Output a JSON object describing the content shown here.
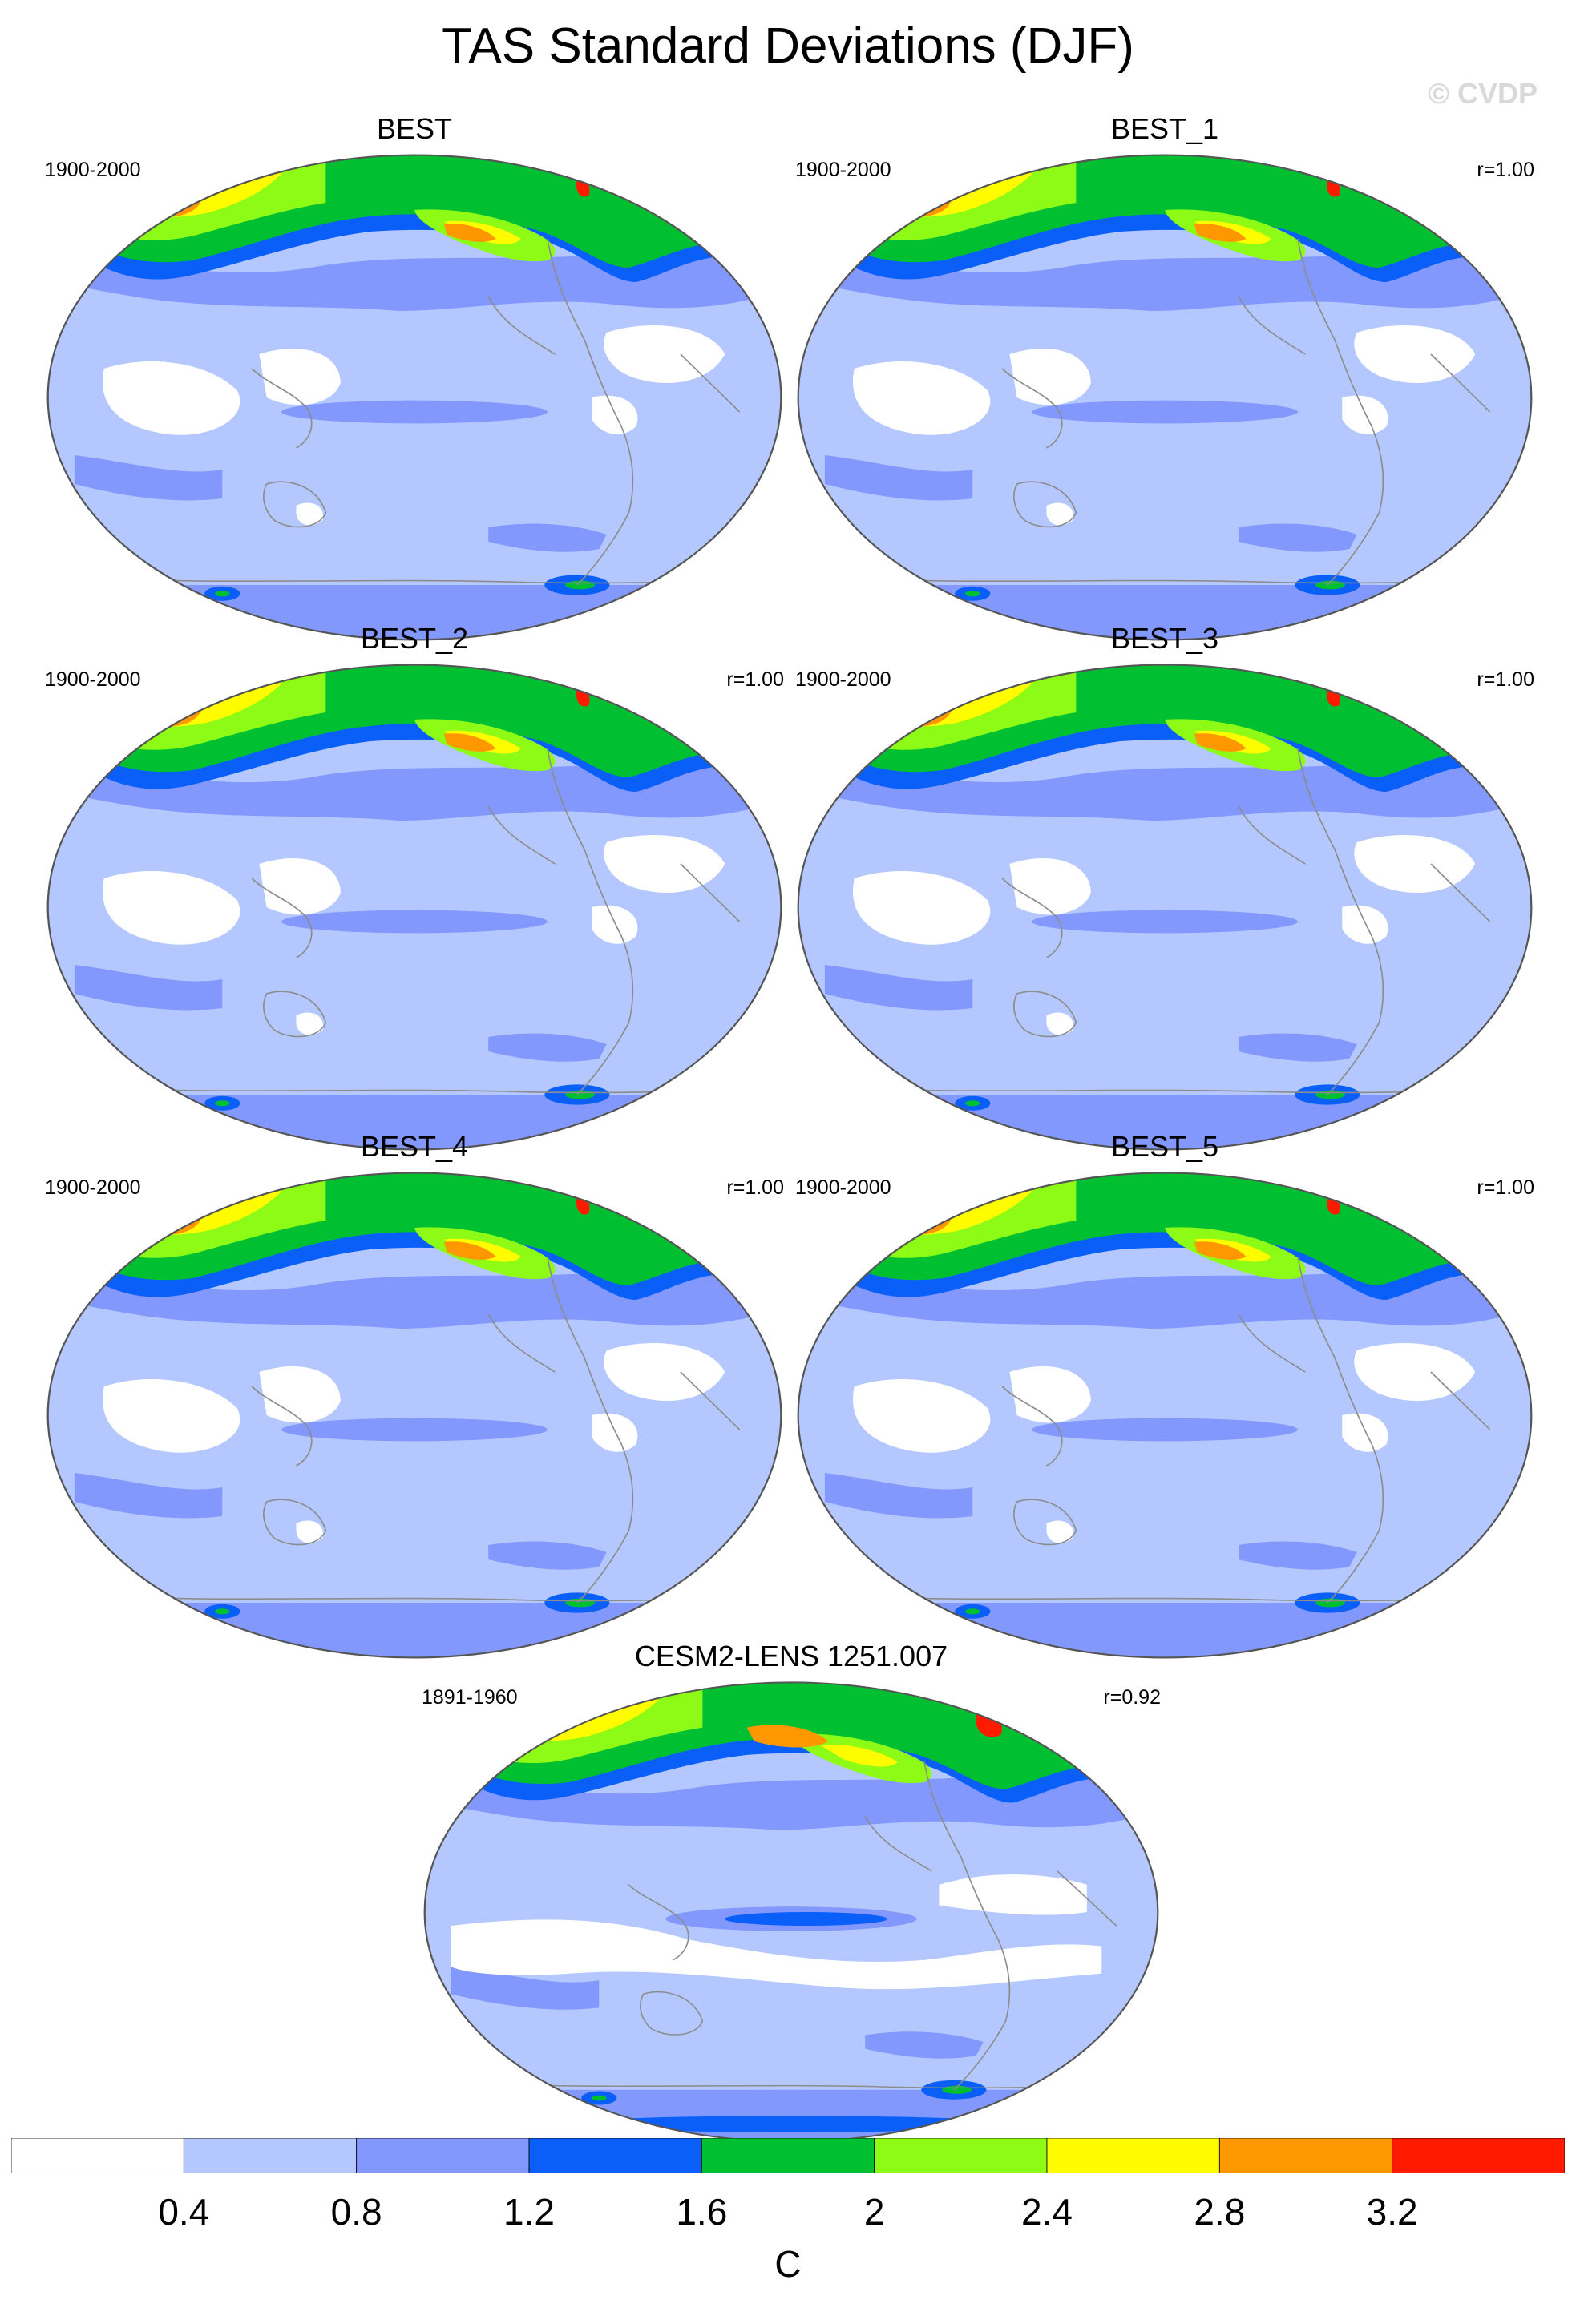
{
  "title": "TAS Standard Deviations (DJF)",
  "watermark": "© CVDP",
  "colors": {
    "levels": [
      "#ffffff",
      "#b4c8ff",
      "#8398fc",
      "#0a5ff9",
      "#00c032",
      "#8dfb15",
      "#fffc00",
      "#ff9800",
      "#ff1a00"
    ],
    "coast": "#8c8c8c"
  },
  "panels": [
    {
      "title": "BEST",
      "years": "1900-2000",
      "corr": "",
      "variant": "obs"
    },
    {
      "title": "BEST_1",
      "years": "1900-2000",
      "corr": "r=1.00",
      "variant": "obs"
    },
    {
      "title": "BEST_2",
      "years": "1900-2000",
      "corr": "r=1.00",
      "variant": "obs"
    },
    {
      "title": "BEST_3",
      "years": "1900-2000",
      "corr": "r=1.00",
      "variant": "obs"
    },
    {
      "title": "BEST_4",
      "years": "1900-2000",
      "corr": "r=1.00",
      "variant": "obs"
    },
    {
      "title": "BEST_5",
      "years": "1900-2000",
      "corr": "r=1.00",
      "variant": "obs"
    },
    {
      "title": "CESM2-LENS 1251.007",
      "years": "1891-1960",
      "corr": "r=0.92",
      "variant": "model"
    }
  ],
  "colorbar": {
    "ticks": [
      "0.4",
      "0.8",
      "1.2",
      "1.6",
      "2",
      "2.4",
      "2.8",
      "3.2"
    ],
    "units": "C"
  }
}
